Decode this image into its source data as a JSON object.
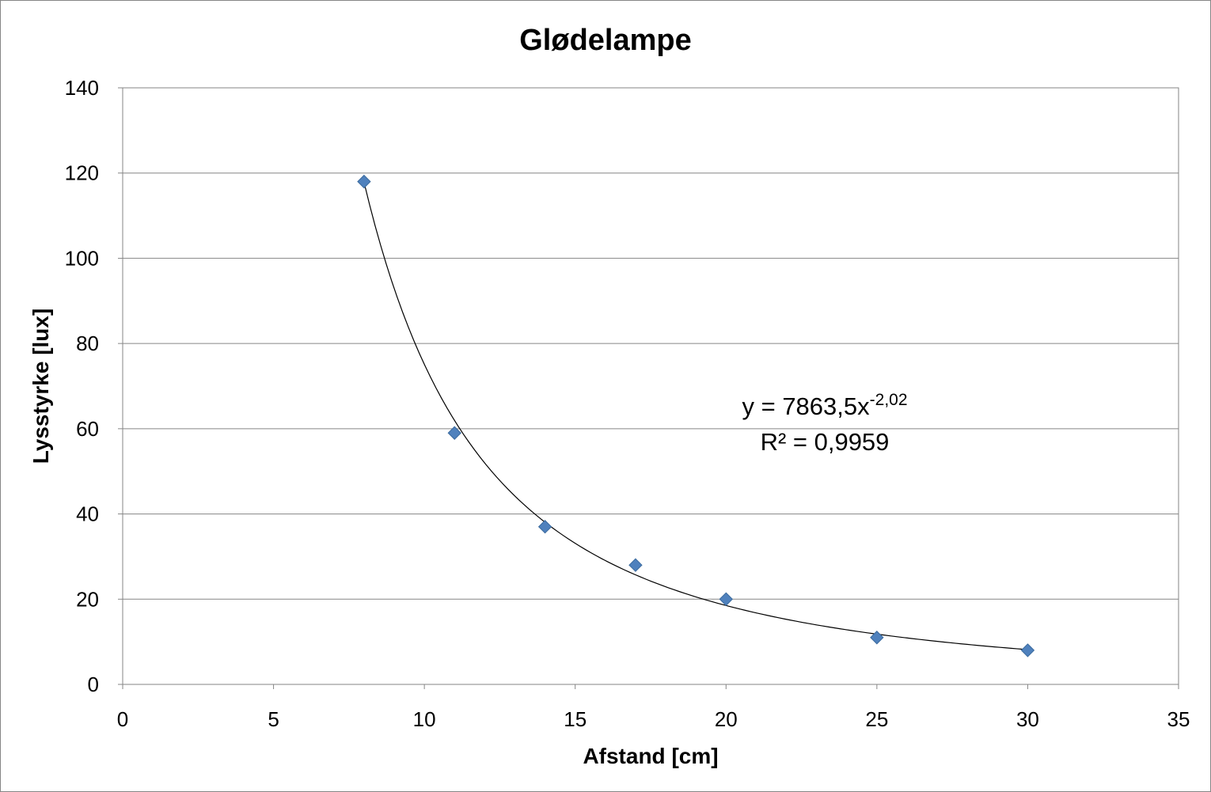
{
  "chart_data": {
    "type": "scatter",
    "title": "Glødelampe",
    "xlabel": "Afstand [cm]",
    "ylabel": "Lysstyrke [lux]",
    "xlim": [
      0,
      35
    ],
    "ylim": [
      0,
      140
    ],
    "x_ticks": [
      0,
      5,
      10,
      15,
      20,
      25,
      30,
      35
    ],
    "y_ticks": [
      0,
      20,
      40,
      60,
      80,
      100,
      120,
      140
    ],
    "grid": "horizontal",
    "legend": "none",
    "series": [
      {
        "x": [
          8,
          11,
          14,
          17,
          20,
          25,
          30
        ],
        "y": [
          118,
          59,
          37,
          28,
          20,
          11,
          8
        ],
        "marker": "diamond",
        "color": "#4F81BD"
      }
    ],
    "trendline": {
      "type": "power",
      "coefficient": 7863.5,
      "exponent": -2.02,
      "x_range": [
        8,
        30
      ],
      "color": "#000000",
      "equation": {
        "prefix": "y = 7863,5x",
        "exponent": "-2,02"
      },
      "r_squared": "R² = 0,9959"
    }
  }
}
